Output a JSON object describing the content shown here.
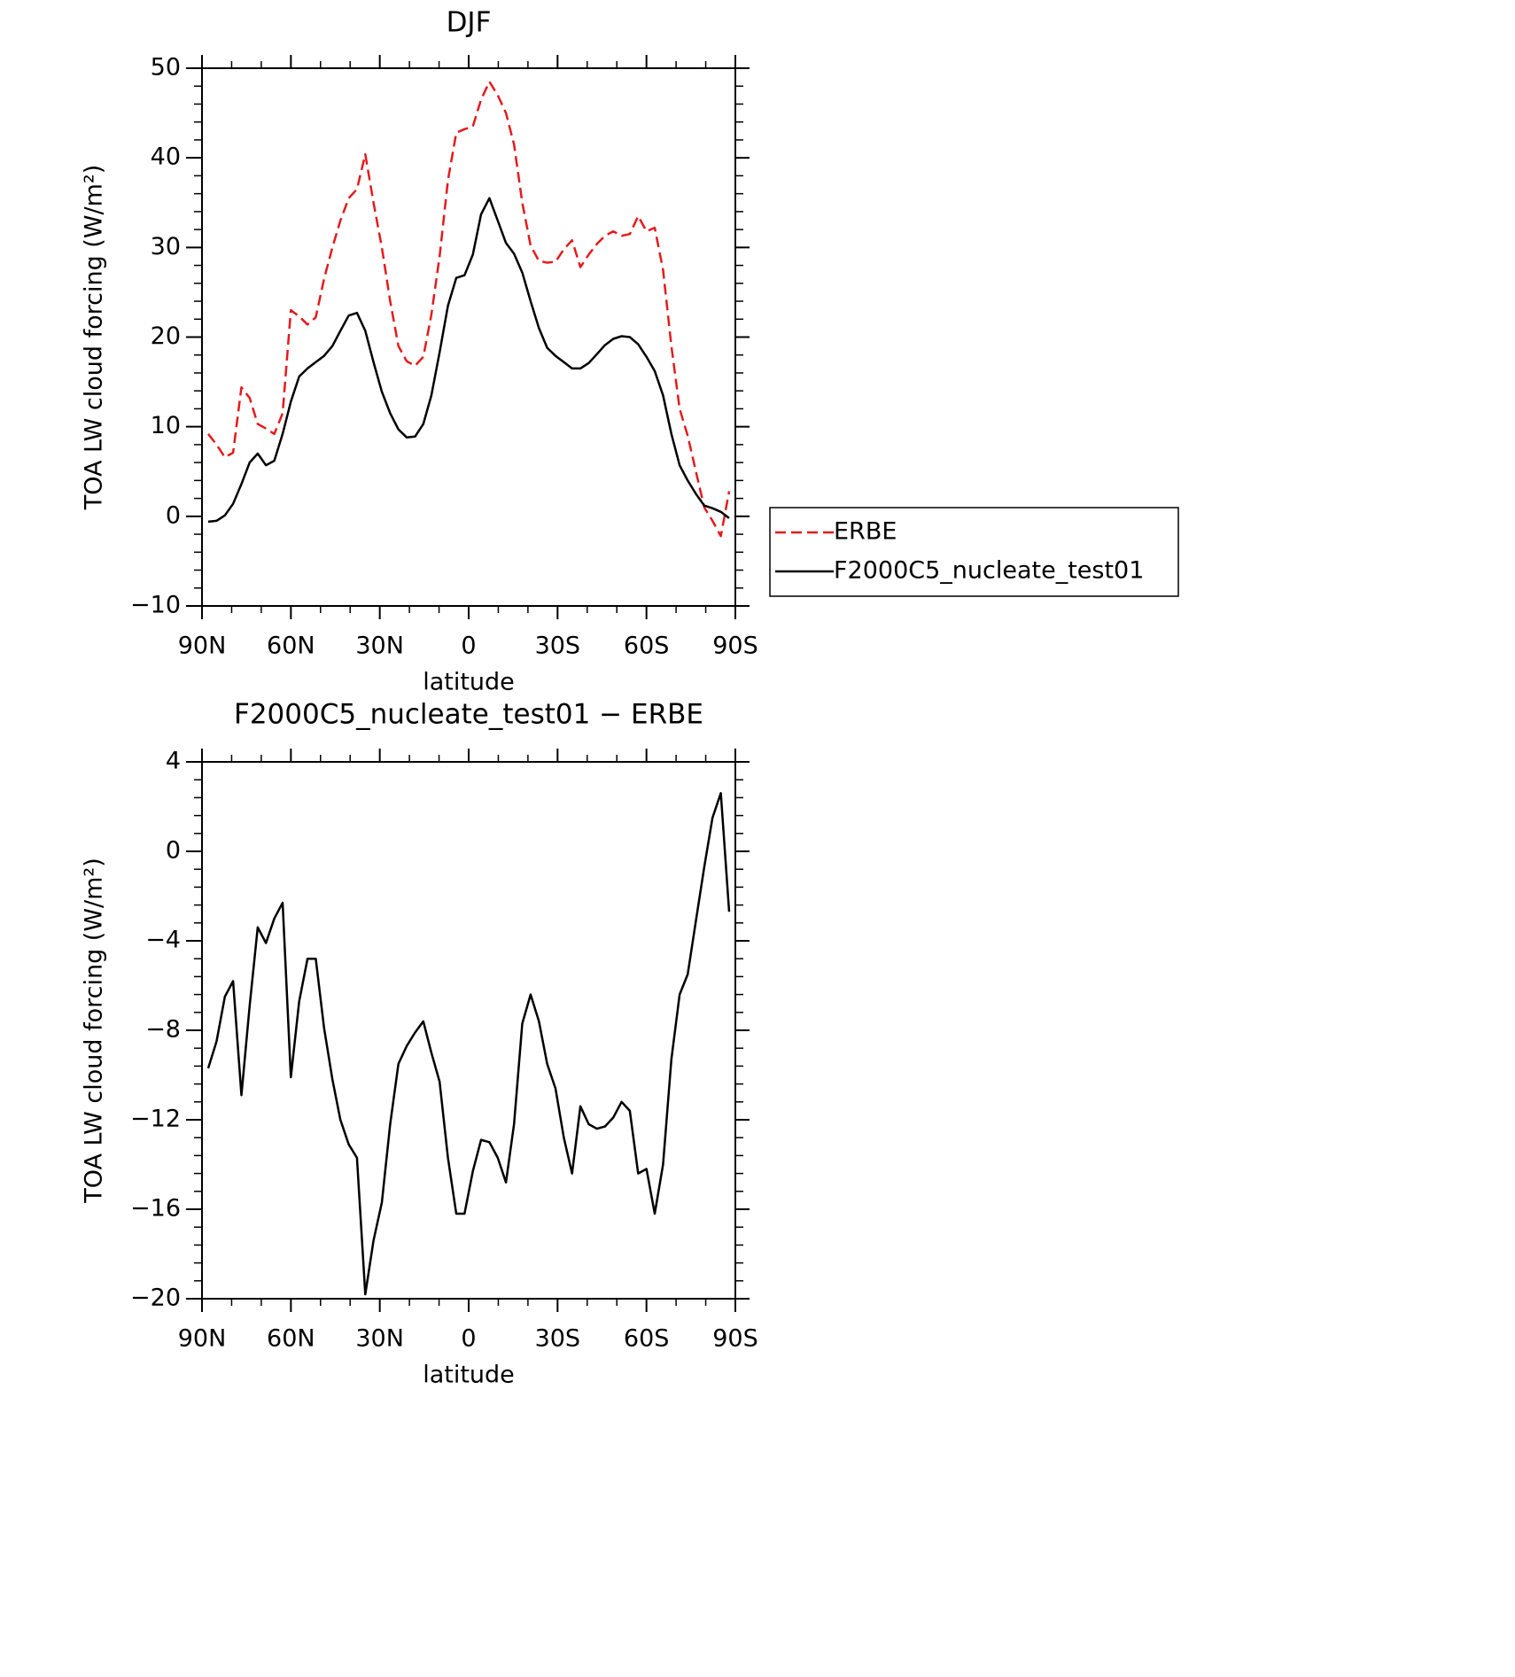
{
  "chart_data": [
    {
      "type": "line",
      "title": "DJF",
      "xlabel": "latitude",
      "ylabel": "TOA LW cloud forcing (W/m²)",
      "x": [
        87.9,
        85.1,
        82.3,
        79.5,
        76.7,
        73.9,
        71.2,
        68.4,
        65.6,
        62.8,
        60.0,
        57.2,
        54.4,
        51.6,
        48.8,
        46.0,
        43.3,
        40.5,
        37.7,
        34.9,
        32.1,
        29.3,
        26.5,
        23.7,
        20.9,
        18.1,
        15.3,
        12.6,
        9.8,
        7.0,
        4.2,
        1.4,
        -1.4,
        -4.2,
        -7.0,
        -9.8,
        -12.6,
        -15.3,
        -18.1,
        -20.9,
        -23.7,
        -26.5,
        -29.3,
        -32.1,
        -34.9,
        -37.7,
        -40.5,
        -43.3,
        -46.0,
        -48.8,
        -51.6,
        -54.4,
        -57.2,
        -60.0,
        -62.8,
        -65.6,
        -68.4,
        -71.2,
        -73.9,
        -76.7,
        -79.5,
        -82.3,
        -85.1,
        -87.9
      ],
      "series": [
        {
          "name": "ERBE",
          "color": "#e41a1c",
          "dash": true,
          "values": [
            9.2,
            8,
            6.6,
            7.1,
            14.4,
            13.2,
            10.3,
            9.8,
            9.2,
            11.5,
            23,
            22.3,
            21.4,
            22.2,
            26.5,
            30,
            33,
            35.5,
            36.5,
            40.4,
            35,
            30,
            24,
            19,
            17.3,
            16.8,
            17.8,
            22.5,
            29,
            37.5,
            42.8,
            43.2,
            43.5,
            46.5,
            48.5,
            47,
            45,
            41.5,
            35,
            30.2,
            28.5,
            28.3,
            28.4,
            29.8,
            30.8,
            27.8,
            29.2,
            30.4,
            31.3,
            31.8,
            31.3,
            31.5,
            33.5,
            31.8,
            32.2,
            27.5,
            19,
            12,
            9,
            5,
            1,
            -0.5,
            -2.2,
            2.8
          ]
        },
        {
          "name": "F2000C5_nucleate_test01",
          "color": "#000000",
          "dash": false,
          "values": [
            -0.6,
            -0.5,
            0.1,
            1.4,
            3.6,
            6,
            7,
            5.7,
            6.2,
            9.2,
            12.8,
            15.6,
            16.5,
            17.2,
            17.9,
            19,
            20.7,
            22.4,
            22.7,
            20.7,
            17.2,
            13.9,
            11.5,
            9.7,
            8.8,
            8.9,
            10.3,
            13.5,
            18.3,
            23.5,
            26.6,
            26.9,
            29.2,
            33.7,
            35.5,
            33,
            30.5,
            29.3,
            27.2,
            24,
            21,
            18.8,
            17.9,
            17.2,
            16.5,
            16.5,
            17.1,
            18.1,
            19.1,
            19.8,
            20.1,
            20,
            19.2,
            17.8,
            16.2,
            13.5,
            9.2,
            5.7,
            4,
            2.5,
            1.2,
            0.9,
            0.5,
            -0.2
          ]
        }
      ],
      "xlim": [
        90,
        -90
      ],
      "xticks": [
        {
          "value": 90,
          "label": "90N"
        },
        {
          "value": 60,
          "label": "60N"
        },
        {
          "value": 30,
          "label": "30N"
        },
        0,
        {
          "value": -30,
          "label": "30S"
        },
        {
          "value": -60,
          "label": "60S"
        },
        {
          "value": -90,
          "label": "90S"
        }
      ],
      "ylim": [
        -10,
        50
      ],
      "yticks": [
        {
          "value": -10,
          "label": "−10"
        },
        0,
        10,
        20,
        30,
        40,
        50
      ],
      "legend": "right"
    },
    {
      "type": "line",
      "title": "F2000C5_nucleate_test01 − ERBE",
      "xlabel": "latitude",
      "ylabel": "TOA LW cloud forcing (W/m²)",
      "x": [
        87.9,
        85.1,
        82.3,
        79.5,
        76.7,
        73.9,
        71.2,
        68.4,
        65.6,
        62.8,
        60.0,
        57.2,
        54.4,
        51.6,
        48.8,
        46.0,
        43.3,
        40.5,
        37.7,
        34.9,
        32.1,
        29.3,
        26.5,
        23.7,
        20.9,
        18.1,
        15.3,
        12.6,
        9.8,
        7.0,
        4.2,
        1.4,
        -1.4,
        -4.2,
        -7.0,
        -9.8,
        -12.6,
        -15.3,
        -18.1,
        -20.9,
        -23.7,
        -26.5,
        -29.3,
        -32.1,
        -34.9,
        -37.7,
        -40.5,
        -43.3,
        -46.0,
        -48.8,
        -51.6,
        -54.4,
        -57.2,
        -60.0,
        -62.8,
        -65.6,
        -68.4,
        -71.2,
        -73.9,
        -76.7,
        -79.5,
        -82.3,
        -85.1,
        -87.9
      ],
      "series": [
        {
          "color": "#000000",
          "dash": false,
          "values": [
            -9.7,
            -8.5,
            -6.5,
            -5.8,
            -10.9,
            -6.9,
            -3.4,
            -4.1,
            -3.0,
            -2.3,
            -10.1,
            -6.7,
            -4.8,
            -4.8,
            -7.9,
            -10.2,
            -12.0,
            -13.1,
            -13.7,
            -19.8,
            -17.4,
            -15.7,
            -12.2,
            -9.5,
            -8.7,
            -8.1,
            -7.6,
            -9.0,
            -10.3,
            -13.7,
            -16.2,
            -16.2,
            -14.3,
            -12.9,
            -13.0,
            -13.7,
            -14.8,
            -12.2,
            -7.7,
            -6.4,
            -7.6,
            -9.5,
            -10.6,
            -12.8,
            -14.4,
            -11.4,
            -12.2,
            -12.4,
            -12.3,
            -11.9,
            -11.2,
            -11.6,
            -14.4,
            -14.2,
            -16.2,
            -14.0,
            -9.3,
            -6.4,
            -5.5,
            -3.1,
            -0.7,
            1.5,
            2.6,
            -2.7
          ]
        }
      ],
      "xlim": [
        90,
        -90
      ],
      "xticks": [
        {
          "value": 90,
          "label": "90N"
        },
        {
          "value": 60,
          "label": "60N"
        },
        {
          "value": 30,
          "label": "30N"
        },
        0,
        {
          "value": -30,
          "label": "30S"
        },
        {
          "value": -60,
          "label": "60S"
        },
        {
          "value": -90,
          "label": "90S"
        }
      ],
      "ylim": [
        -20,
        4
      ],
      "yticks": [
        {
          "value": -20,
          "label": "−20"
        },
        {
          "value": -16,
          "label": "−16"
        },
        {
          "value": -12,
          "label": "−12"
        },
        {
          "value": -8,
          "label": "−8"
        },
        {
          "value": -4,
          "label": "−4"
        },
        0,
        4
      ]
    }
  ]
}
